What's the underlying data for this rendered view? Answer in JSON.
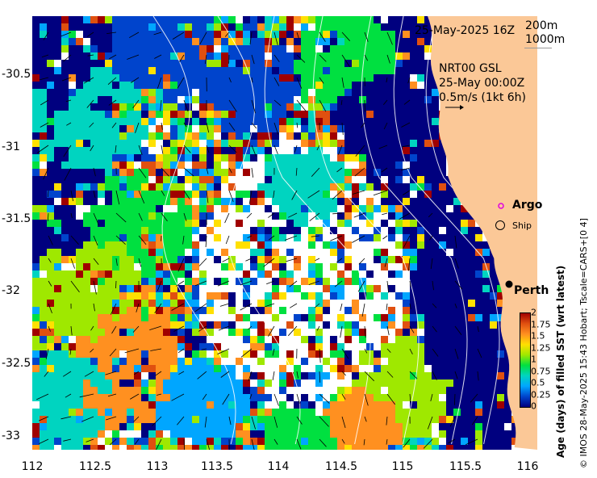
{
  "header": {
    "date_label": "25-May-2025 16Z",
    "depth_label_1": "200m",
    "depth_label_2": "1000m"
  },
  "currents": {
    "title": "NRT00 GSL",
    "time": "25-May 00:00Z",
    "scale": "0.5m/s (1kt 6h)"
  },
  "legend": {
    "argo_label": "Argo",
    "ship_label": "Ship"
  },
  "place": {
    "city": "Perth"
  },
  "axes": {
    "x_ticks": [
      "112",
      "112.5",
      "113",
      "113.5",
      "114",
      "114.5",
      "115",
      "115.5",
      "116"
    ],
    "y_ticks": [
      "-30.5",
      "-31",
      "-31.5",
      "-32",
      "-32.5",
      "-33"
    ]
  },
  "colorbar": {
    "title": "Age (days) of filled SST (wrt latest)",
    "ticks": [
      "2",
      "1.75",
      "1.5",
      "1.25",
      "1",
      "0.75",
      "0.5",
      "0.25",
      "0"
    ],
    "colors": [
      "#00007f",
      "#0044cc",
      "#00a6ff",
      "#00d4c0",
      "#00e040",
      "#9fe800",
      "#ffe000",
      "#ff9020",
      "#e05010",
      "#a00000"
    ]
  },
  "credit": "© IMOS 28-May-2025 15:43 Hobart; Tscale=CARS+[0 4]",
  "colors": {
    "land": "#fbc897",
    "deep_blue": "#00007f",
    "mid_blue": "#0044cc",
    "cyan": "#00a6ff",
    "teal": "#00d4c0",
    "green": "#00e040",
    "lime": "#9fe800",
    "yellow": "#ffe000",
    "orange": "#ff9020",
    "rust": "#e05010",
    "maroon": "#a00000",
    "argo_marker": "#e000e0"
  }
}
